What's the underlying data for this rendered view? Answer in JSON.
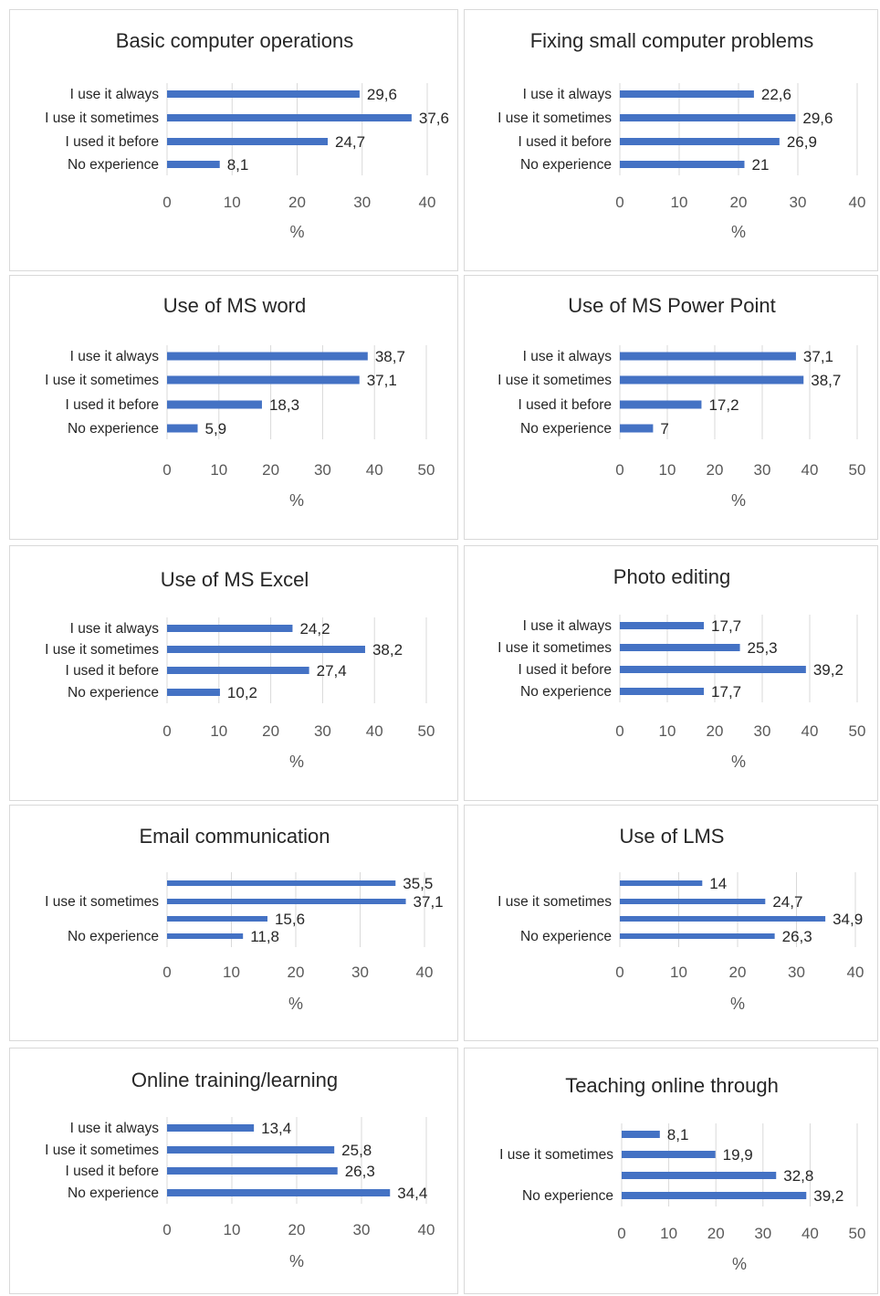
{
  "accent_color": "#4472C4",
  "chart_data": [
    {
      "type": "bar",
      "orientation": "horizontal",
      "title": "Basic computer operations",
      "categories": [
        "I use it always",
        "I use it sometimes",
        "I used it before",
        "No experience"
      ],
      "values": [
        29.6,
        37.6,
        24.7,
        8.1
      ],
      "labels": [
        "29,6",
        "37,6",
        "24,7",
        "8,1"
      ],
      "xlabel": "%",
      "xlim": [
        0,
        40
      ],
      "ticks": [
        "0",
        "10",
        "20",
        "30",
        "40"
      ],
      "grid": true,
      "legend": "none"
    },
    {
      "type": "bar",
      "orientation": "horizontal",
      "title": "Fixing small computer problems",
      "categories": [
        "I use it always",
        "I use it sometimes",
        "I used it before",
        "No experience"
      ],
      "values": [
        22.6,
        29.6,
        26.9,
        21
      ],
      "labels": [
        "22,6",
        "29,6",
        "26,9",
        "21"
      ],
      "xlabel": "%",
      "xlim": [
        0,
        40
      ],
      "ticks": [
        "0",
        "10",
        "20",
        "30",
        "40"
      ],
      "grid": true,
      "legend": "none"
    },
    {
      "type": "bar",
      "orientation": "horizontal",
      "title": "Use of MS word",
      "categories": [
        "I use it always",
        "I use it sometimes",
        "I used it before",
        "No experience"
      ],
      "values": [
        38.7,
        37.1,
        18.3,
        5.9
      ],
      "labels": [
        "38,7",
        "37,1",
        "18,3",
        "5,9"
      ],
      "xlabel": "%",
      "xlim": [
        0,
        50
      ],
      "ticks": [
        "0",
        "10",
        "20",
        "30",
        "40",
        "50"
      ],
      "grid": true,
      "legend": "none"
    },
    {
      "type": "bar",
      "orientation": "horizontal",
      "title": "Use of MS Power Point",
      "categories": [
        "I use it always",
        "I use it sometimes",
        "I used it before",
        "No experience"
      ],
      "values": [
        37.1,
        38.7,
        17.2,
        7
      ],
      "labels": [
        "37,1",
        "38,7",
        "17,2",
        "7"
      ],
      "xlabel": "%",
      "xlim": [
        0,
        50
      ],
      "ticks": [
        "0",
        "10",
        "20",
        "30",
        "40",
        "50"
      ],
      "grid": true,
      "legend": "none"
    },
    {
      "type": "bar",
      "orientation": "horizontal",
      "title": "Use of MS Excel",
      "categories": [
        "I use it always",
        "I use it sometimes",
        "I used it before",
        "No experience"
      ],
      "values": [
        24.2,
        38.2,
        27.4,
        10.2
      ],
      "labels": [
        "24,2",
        "38,2",
        "27,4",
        "10,2"
      ],
      "xlabel": "%",
      "xlim": [
        0,
        50
      ],
      "ticks": [
        "0",
        "10",
        "20",
        "30",
        "40",
        "50"
      ],
      "grid": true,
      "legend": "none"
    },
    {
      "type": "bar",
      "orientation": "horizontal",
      "title": "Photo editing",
      "categories": [
        "I use it always",
        "I use it sometimes",
        "I used it before",
        "No experience"
      ],
      "values": [
        17.7,
        25.3,
        39.2,
        17.7
      ],
      "labels": [
        "17,7",
        "25,3",
        "39,2",
        "17,7"
      ],
      "xlabel": "%",
      "xlim": [
        0,
        50
      ],
      "ticks": [
        "0",
        "10",
        "20",
        "30",
        "40",
        "50"
      ],
      "grid": true,
      "legend": "none"
    },
    {
      "type": "bar",
      "orientation": "horizontal",
      "title": "Email communication",
      "categories": [
        "",
        "I use it sometimes",
        "",
        "No experience"
      ],
      "values": [
        35.5,
        37.1,
        15.6,
        11.8
      ],
      "labels": [
        "35,5",
        "37,1",
        "15,6",
        "11,8"
      ],
      "xlabel": "%",
      "xlim": [
        0,
        40
      ],
      "ticks": [
        "0",
        "10",
        "20",
        "30",
        "40"
      ],
      "grid": true,
      "legend": "none"
    },
    {
      "type": "bar",
      "orientation": "horizontal",
      "title": "Use of LMS",
      "categories": [
        "",
        "I use it sometimes",
        "",
        "No experience"
      ],
      "values": [
        14,
        24.7,
        34.9,
        26.3
      ],
      "labels": [
        "14",
        "24,7",
        "34,9",
        "26,3"
      ],
      "xlabel": "%",
      "xlim": [
        0,
        40
      ],
      "ticks": [
        "0",
        "10",
        "20",
        "30",
        "40"
      ],
      "grid": true,
      "legend": "none"
    },
    {
      "type": "bar",
      "orientation": "horizontal",
      "title": "Online training/learning",
      "categories": [
        "I use it always",
        "I use it sometimes",
        "I used it before",
        "No experience"
      ],
      "values": [
        13.4,
        25.8,
        26.3,
        34.4
      ],
      "labels": [
        "13,4",
        "25,8",
        "26,3",
        "34,4"
      ],
      "xlabel": "%",
      "xlim": [
        0,
        40
      ],
      "ticks": [
        "0",
        "10",
        "20",
        "30",
        "40"
      ],
      "grid": true,
      "legend": "none"
    },
    {
      "type": "bar",
      "orientation": "horizontal",
      "title": "Teaching online through",
      "categories": [
        "",
        "I use it sometimes",
        "",
        "No experience"
      ],
      "values": [
        8.1,
        19.9,
        32.8,
        39.2
      ],
      "labels": [
        "8,1",
        "19,9",
        "32,8",
        "39,2"
      ],
      "xlabel": "%",
      "xlim": [
        0,
        50
      ],
      "ticks": [
        "0",
        "10",
        "20",
        "30",
        "40",
        "50"
      ],
      "grid": true,
      "legend": "none"
    }
  ]
}
